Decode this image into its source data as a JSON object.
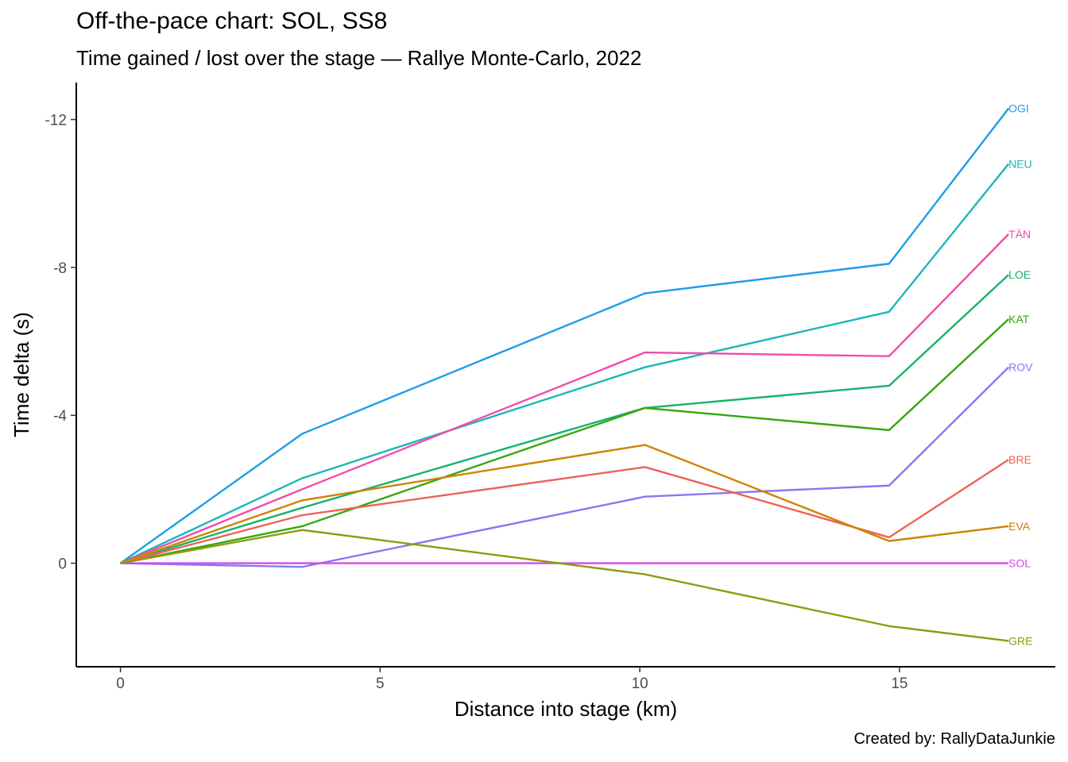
{
  "chart_data": {
    "type": "line",
    "title": "Off-the-pace chart: SOL, SS8",
    "subtitle": "Time gained / lost over the stage — Rallye Monte-Carlo, 2022",
    "xlabel": "Distance into stage (km)",
    "ylabel": "Time delta (s)",
    "caption": "Created by: RallyDataJunkie",
    "x_ticks": [
      0,
      5,
      10,
      15
    ],
    "x_tick_labels": [
      "0",
      "5",
      "10",
      "15"
    ],
    "y_ticks": [
      -12,
      -8,
      -4,
      0
    ],
    "y_tick_labels": [
      "-12",
      "-8",
      "-4",
      "0"
    ],
    "xlim": [
      -0.85,
      18.0
    ],
    "ylim": [
      2.8,
      -13.0
    ],
    "y_reversed": true,
    "grid": false,
    "x": [
      0,
      3.5,
      10.1,
      14.8,
      17.1
    ],
    "series": [
      {
        "name": "OGI",
        "color": "#1C9EE8",
        "values": [
          0,
          -3.5,
          -7.3,
          -8.1,
          -12.3
        ]
      },
      {
        "name": "NEU",
        "color": "#1DB6B8",
        "values": [
          0,
          -2.3,
          -5.3,
          -6.8,
          -10.8
        ]
      },
      {
        "name": "TÄN",
        "color": "#F34AAE",
        "values": [
          0,
          -2.0,
          -5.7,
          -5.6,
          -8.9
        ]
      },
      {
        "name": "LOE",
        "color": "#16B36A",
        "values": [
          0,
          -1.5,
          -4.2,
          -4.8,
          -7.8
        ]
      },
      {
        "name": "KAT",
        "color": "#34A70E",
        "values": [
          0,
          -1.0,
          -4.2,
          -3.6,
          -6.6
        ]
      },
      {
        "name": "ROV",
        "color": "#8479F0",
        "values": [
          0,
          0.1,
          -1.8,
          -2.1,
          -5.3
        ]
      },
      {
        "name": "BRE",
        "color": "#EE6258",
        "values": [
          0,
          -1.3,
          -2.6,
          -0.7,
          -2.8
        ]
      },
      {
        "name": "EVA",
        "color": "#CD8400",
        "values": [
          0,
          -1.7,
          -3.2,
          -0.6,
          -1.0
        ]
      },
      {
        "name": "SOL",
        "color": "#D847E8",
        "values": [
          0,
          0,
          0,
          0,
          0
        ]
      },
      {
        "name": "GRE",
        "color": "#8E9B0E",
        "values": [
          0,
          -0.9,
          0.3,
          1.7,
          2.1
        ]
      }
    ]
  }
}
